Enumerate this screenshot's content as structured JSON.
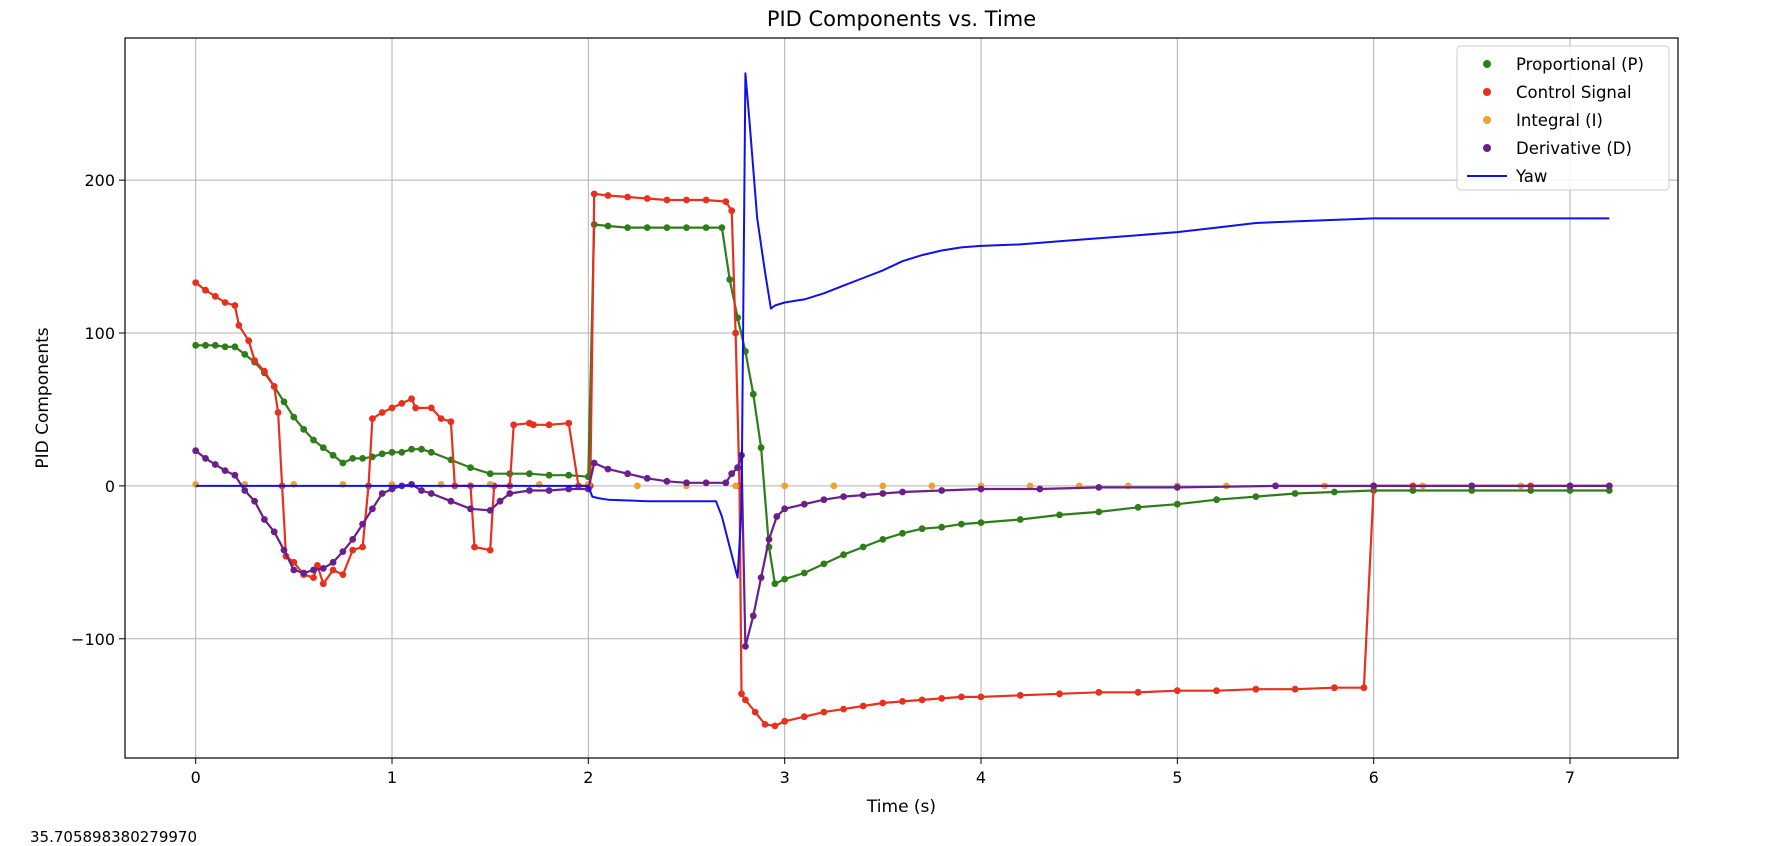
{
  "chart_data": {
    "type": "line",
    "title": "PID Components vs. Time",
    "xlabel": "Time (s)",
    "ylabel": "PID Components",
    "xlim": [
      -0.36,
      7.55
    ],
    "ylim": [
      -178,
      293
    ],
    "xticks": [
      0,
      1,
      2,
      3,
      4,
      5,
      6,
      7
    ],
    "yticks": [
      -100,
      0,
      100,
      200
    ],
    "grid": true,
    "legend_position": "top-right",
    "series": [
      {
        "name": "Proportional (P)",
        "kind": "line-with-markers",
        "color": "#2e7d1a",
        "x": [
          0,
          0.05,
          0.1,
          0.15,
          0.2,
          0.25,
          0.3,
          0.35,
          0.4,
          0.45,
          0.5,
          0.55,
          0.6,
          0.65,
          0.7,
          0.75,
          0.8,
          0.85,
          0.9,
          0.95,
          1.0,
          1.05,
          1.1,
          1.15,
          1.2,
          1.3,
          1.4,
          1.5,
          1.6,
          1.7,
          1.8,
          1.9,
          2.0,
          2.03,
          2.1,
          2.2,
          2.3,
          2.4,
          2.5,
          2.6,
          2.68,
          2.72,
          2.76,
          2.8,
          2.84,
          2.88,
          2.92,
          2.95,
          3.0,
          3.1,
          3.2,
          3.3,
          3.4,
          3.5,
          3.6,
          3.7,
          3.8,
          3.9,
          4.0,
          4.2,
          4.4,
          4.6,
          4.8,
          5.0,
          5.2,
          5.4,
          5.6,
          5.8,
          6.0,
          6.2,
          6.5,
          6.8,
          7.0,
          7.2
        ],
        "y": [
          92,
          92,
          92,
          91,
          91,
          86,
          81,
          74,
          65,
          55,
          45,
          37,
          30,
          25,
          20,
          15,
          18,
          18,
          19,
          21,
          22,
          22,
          24,
          24,
          22,
          17,
          12,
          8,
          8,
          8,
          7,
          7,
          6,
          171,
          170,
          169,
          169,
          169,
          169,
          169,
          169,
          135,
          110,
          88,
          60,
          25,
          -40,
          -64,
          -61,
          -57,
          -51,
          -45,
          -40,
          -35,
          -31,
          -28,
          -27,
          -25,
          -24,
          -22,
          -19,
          -17,
          -14,
          -12,
          -9,
          -7,
          -5,
          -4,
          -3,
          -3,
          -3,
          -3,
          -3,
          -3
        ]
      },
      {
        "name": "Control Signal",
        "kind": "line-with-markers",
        "color": "#e8301e",
        "x": [
          0,
          0.05,
          0.1,
          0.15,
          0.2,
          0.22,
          0.27,
          0.3,
          0.35,
          0.4,
          0.42,
          0.44,
          0.46,
          0.5,
          0.55,
          0.6,
          0.62,
          0.65,
          0.7,
          0.75,
          0.8,
          0.85,
          0.88,
          0.9,
          0.95,
          1.0,
          1.05,
          1.1,
          1.12,
          1.2,
          1.25,
          1.3,
          1.32,
          1.4,
          1.42,
          1.5,
          1.52,
          1.6,
          1.62,
          1.7,
          1.72,
          1.8,
          1.9,
          1.95,
          2.0,
          2.01,
          2.03,
          2.1,
          2.2,
          2.3,
          2.4,
          2.5,
          2.6,
          2.7,
          2.73,
          2.75,
          2.77,
          2.78,
          2.8,
          2.85,
          2.9,
          2.95,
          3.0,
          3.1,
          3.2,
          3.3,
          3.4,
          3.5,
          3.6,
          3.7,
          3.8,
          3.9,
          4.0,
          4.2,
          4.4,
          4.6,
          4.8,
          5.0,
          5.2,
          5.4,
          5.6,
          5.8,
          5.95,
          6.0,
          6.2,
          6.5,
          6.8,
          7.0,
          7.2
        ],
        "y": [
          133,
          128,
          124,
          120,
          118,
          105,
          95,
          82,
          75,
          65,
          48,
          0,
          -46,
          -50,
          -58,
          -60,
          -52,
          -64,
          -55,
          -58,
          -42,
          -40,
          0,
          44,
          48,
          51,
          54,
          57,
          51,
          51,
          44,
          42,
          0,
          0,
          -40,
          -42,
          0,
          0,
          40,
          41,
          40,
          40,
          41,
          0,
          0,
          0,
          191,
          190,
          189,
          188,
          187,
          187,
          187,
          186,
          180,
          100,
          0,
          -136,
          -140,
          -148,
          -156,
          -157,
          -154,
          -151,
          -148,
          -146,
          -144,
          -142,
          -141,
          -140,
          -139,
          -138,
          -138,
          -137,
          -136,
          -135,
          -135,
          -134,
          -134,
          -133,
          -133,
          -132,
          -132,
          0,
          0,
          0,
          0,
          0,
          0
        ]
      },
      {
        "name": "Integral (I)",
        "kind": "markers",
        "color": "#f0a030",
        "x": [
          0,
          0.25,
          0.5,
          0.75,
          1.0,
          1.25,
          1.5,
          1.75,
          2.0,
          2.25,
          2.5,
          2.75,
          3.0,
          3.25,
          3.5,
          3.75,
          4.0,
          4.25,
          4.5,
          4.75,
          5.0,
          5.25,
          5.5,
          5.75,
          6.0,
          6.25,
          6.5,
          6.75,
          7.0,
          7.2
        ],
        "y": [
          1,
          1,
          1,
          1,
          1,
          1,
          1,
          1,
          1,
          0,
          0,
          0,
          0,
          0,
          0,
          0,
          0,
          0,
          0,
          0,
          0,
          0,
          0,
          0,
          0,
          0,
          0,
          0,
          0,
          0
        ]
      },
      {
        "name": "Derivative (D)",
        "kind": "line-with-markers",
        "color": "#6a1f8a",
        "x": [
          0,
          0.05,
          0.1,
          0.15,
          0.2,
          0.25,
          0.3,
          0.35,
          0.4,
          0.45,
          0.5,
          0.55,
          0.6,
          0.65,
          0.7,
          0.75,
          0.8,
          0.85,
          0.9,
          0.95,
          1.0,
          1.05,
          1.1,
          1.15,
          1.2,
          1.3,
          1.4,
          1.5,
          1.55,
          1.6,
          1.7,
          1.8,
          1.9,
          2.0,
          2.03,
          2.1,
          2.2,
          2.3,
          2.4,
          2.5,
          2.6,
          2.7,
          2.73,
          2.76,
          2.78,
          2.8,
          2.84,
          2.88,
          2.92,
          2.96,
          3.0,
          3.1,
          3.2,
          3.3,
          3.4,
          3.5,
          3.6,
          3.8,
          4.0,
          4.3,
          4.6,
          5.0,
          5.5,
          6.0,
          6.5,
          7.0,
          7.2
        ],
        "y": [
          23,
          18,
          14,
          10,
          7,
          -3,
          -10,
          -22,
          -30,
          -42,
          -55,
          -57,
          -55,
          -54,
          -50,
          -43,
          -35,
          -25,
          -15,
          -5,
          -2,
          0,
          1,
          -3,
          -5,
          -10,
          -15,
          -16,
          -10,
          -5,
          -3,
          -3,
          -2,
          -2,
          15,
          11,
          8,
          5,
          3,
          2,
          2,
          2,
          8,
          12,
          20,
          -105,
          -85,
          -60,
          -35,
          -20,
          -15,
          -12,
          -9,
          -7,
          -6,
          -5,
          -4,
          -3,
          -2,
          -2,
          -1,
          -1,
          0,
          0,
          0,
          0,
          0
        ]
      },
      {
        "name": "Yaw",
        "kind": "line",
        "color": "#1010ee",
        "x": [
          0,
          0.5,
          1.0,
          1.5,
          2.0,
          2.02,
          2.05,
          2.1,
          2.3,
          2.5,
          2.65,
          2.68,
          2.72,
          2.76,
          2.78,
          2.8,
          2.82,
          2.86,
          2.9,
          2.93,
          2.95,
          3.0,
          3.05,
          3.1,
          3.2,
          3.3,
          3.4,
          3.5,
          3.6,
          3.7,
          3.8,
          3.9,
          4.0,
          4.2,
          4.4,
          4.6,
          4.8,
          5.0,
          5.2,
          5.4,
          5.6,
          5.8,
          6.0,
          6.2,
          6.5,
          7.0,
          7.2
        ],
        "y": [
          0,
          0,
          0,
          0,
          0,
          -7,
          -8,
          -9,
          -10,
          -10,
          -10,
          -20,
          -40,
          -60,
          -15,
          270,
          240,
          175,
          140,
          116,
          118,
          120,
          121,
          122,
          126,
          131,
          136,
          141,
          147,
          151,
          154,
          156,
          157,
          158,
          160,
          162,
          164,
          166,
          169,
          172,
          173,
          174,
          175,
          175,
          175,
          175,
          175
        ]
      }
    ]
  },
  "footer_note": "35.705898380279970"
}
